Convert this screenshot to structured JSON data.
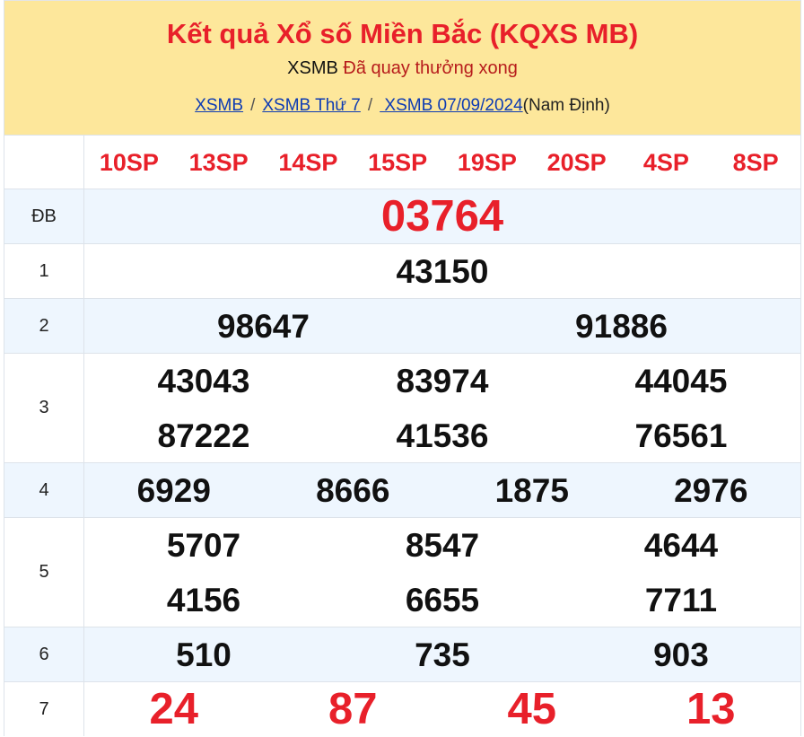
{
  "header": {
    "title": "Kết quả Xổ số Miền Bắc (KQXS MB)",
    "status_prefix": "XSMB",
    "status": "Đã quay thưởng xong",
    "breadcrumbs": [
      "XSMB",
      "XSMB Thứ 7",
      " XSMB 07/09/2024"
    ],
    "province": "(Nam Định)",
    "separator": "/"
  },
  "codes": [
    "10SP",
    "13SP",
    "14SP",
    "15SP",
    "19SP",
    "20SP",
    "4SP",
    "8SP"
  ],
  "prizes": [
    {
      "label": "ĐB",
      "numbers": [
        "03764"
      ]
    },
    {
      "label": "1",
      "numbers": [
        "43150"
      ]
    },
    {
      "label": "2",
      "numbers": [
        "98647",
        "91886"
      ]
    },
    {
      "label": "3",
      "numbers": [
        "43043",
        "83974",
        "44045",
        "87222",
        "41536",
        "76561"
      ]
    },
    {
      "label": "4",
      "numbers": [
        "6929",
        "8666",
        "1875",
        "2976"
      ]
    },
    {
      "label": "5",
      "numbers": [
        "5707",
        "8547",
        "4644",
        "4156",
        "6655",
        "7711"
      ]
    },
    {
      "label": "6",
      "numbers": [
        "510",
        "735",
        "903"
      ]
    },
    {
      "label": "7",
      "numbers": [
        "24",
        "87",
        "45",
        "13"
      ]
    }
  ],
  "colors": {
    "accent": "#e8202a",
    "header_bg": "#fde79b",
    "row_alt": "#eef6fe",
    "link": "#0d3bb3"
  }
}
